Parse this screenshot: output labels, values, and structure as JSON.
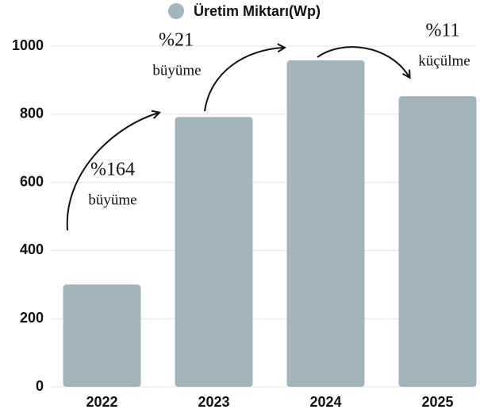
{
  "chart_data": {
    "type": "bar",
    "legend": "Üretim Miktarı(Wp)",
    "categories": [
      "2022",
      "2023",
      "2024",
      "2025"
    ],
    "values": [
      300,
      792,
      958,
      853
    ],
    "color": "#a3b5bc",
    "ylim": [
      0,
      1000
    ],
    "yticks": [
      0,
      200,
      400,
      600,
      800,
      1000
    ],
    "grid": true,
    "annotations": [
      {
        "percent": "%164",
        "text": "büyüme"
      },
      {
        "percent": "%21",
        "text": "büyüme"
      },
      {
        "percent": "%11",
        "text": "küçülme"
      }
    ]
  }
}
